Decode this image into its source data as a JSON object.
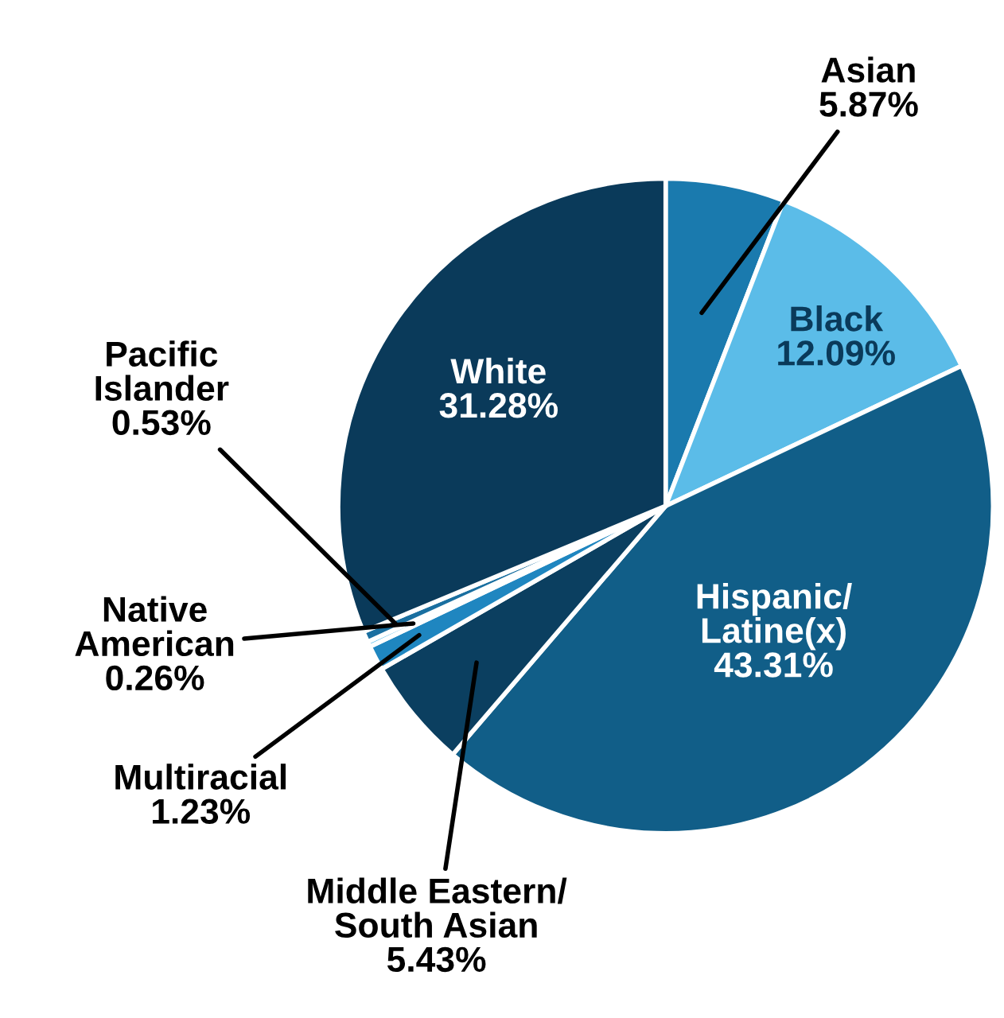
{
  "chart_data": {
    "type": "pie",
    "categories": [
      "Asian",
      "Black",
      "Hispanic/\nLatine(x)",
      "Middle Eastern/\nSouth Asian",
      "Multiracial",
      "Native\nAmerican",
      "Pacific\nIslander",
      "White"
    ],
    "values": [
      5.87,
      12.09,
      43.31,
      5.43,
      1.23,
      0.26,
      0.53,
      31.28
    ],
    "value_labels": [
      "5.87%",
      "12.09%",
      "43.31%",
      "5.43%",
      "1.23%",
      "0.26%",
      "0.53%",
      "31.28%"
    ],
    "colors": [
      "#1a7aae",
      "#5bbce8",
      "#115e88",
      "#0b3f60",
      "#1f86c0",
      "#6fc6ee",
      "#1a6fa0",
      "#0a3a5a"
    ]
  }
}
